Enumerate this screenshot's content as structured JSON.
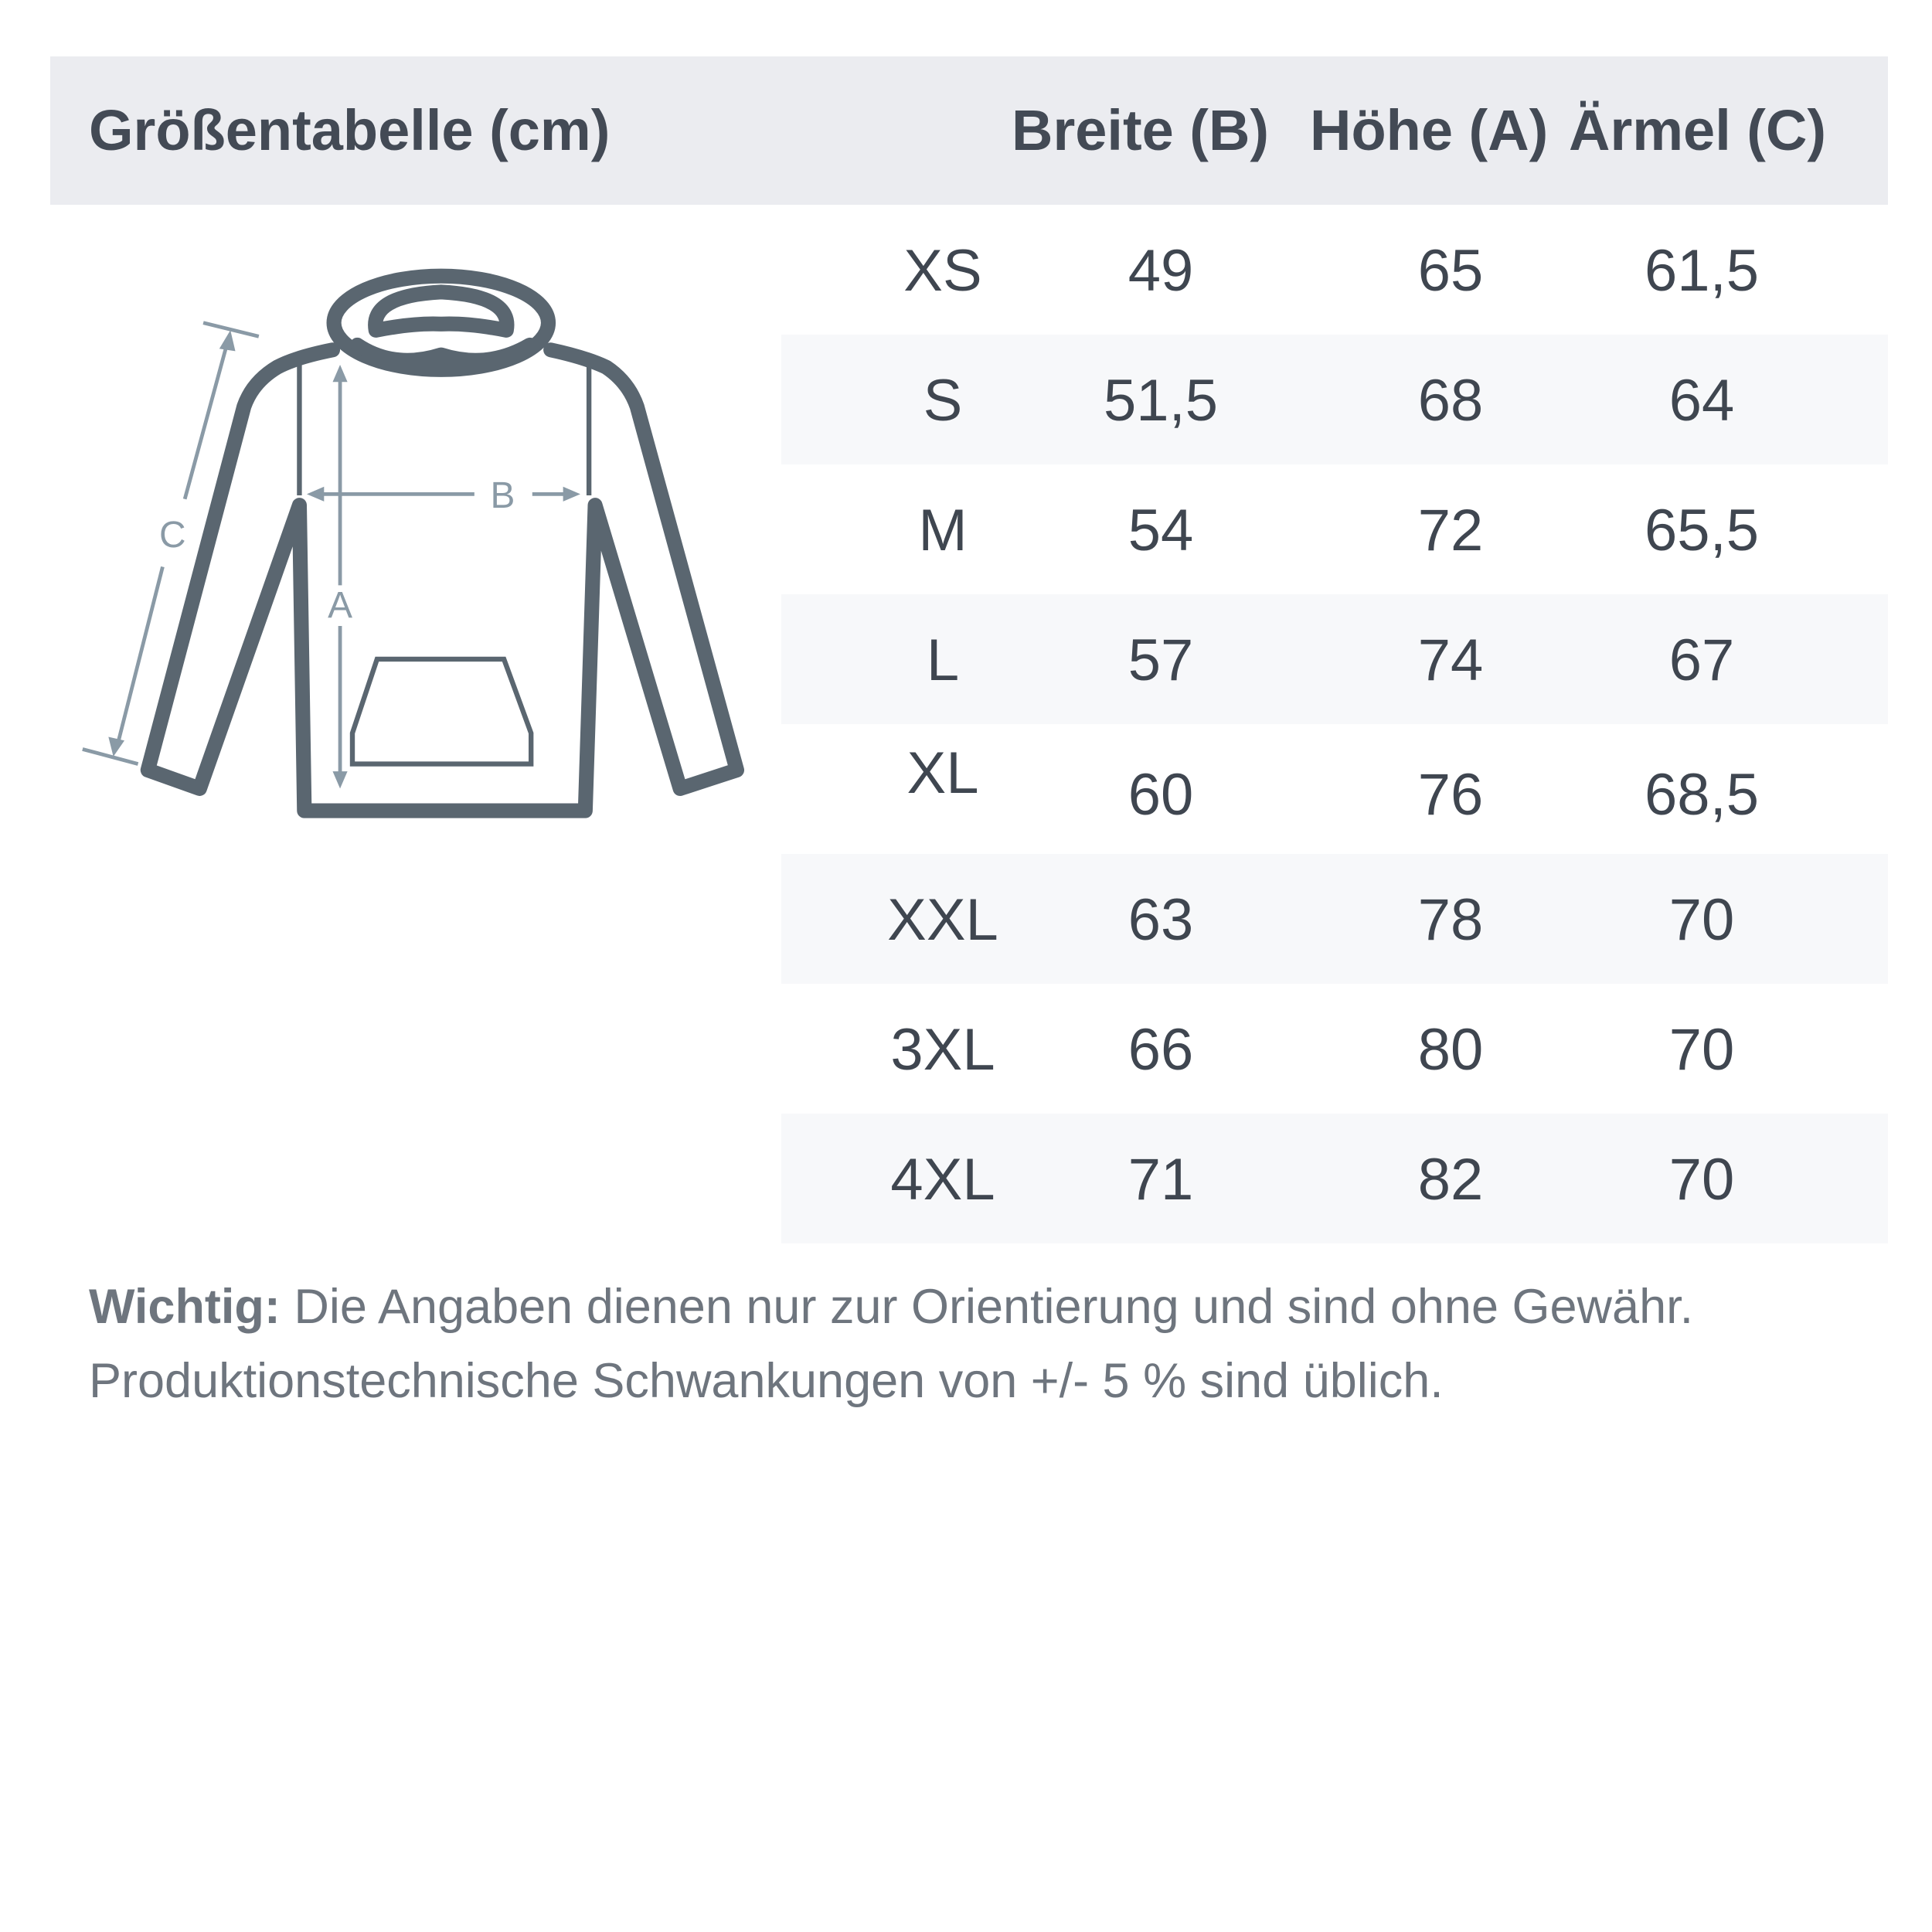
{
  "header": {
    "title": "Größentabelle (cm)",
    "columns": [
      "Breite (B)",
      "Höhe (A)",
      "Ärmel (C)"
    ]
  },
  "diagram": {
    "labels": {
      "a": "A",
      "b": "B",
      "c": "C"
    },
    "garment_color": "#5a6670",
    "arrow_color": "#8a9aa6"
  },
  "rows": [
    {
      "size": "XS",
      "breite": "49",
      "hoehe": "65",
      "aermel": "61,5"
    },
    {
      "size": "S",
      "breite": "51,5",
      "hoehe": "68",
      "aermel": "64"
    },
    {
      "size": "M",
      "breite": "54",
      "hoehe": "72",
      "aermel": "65,5"
    },
    {
      "size": "L",
      "breite": "57",
      "hoehe": "74",
      "aermel": "67"
    },
    {
      "size": "XL",
      "breite": "60",
      "hoehe": "76",
      "aermel": "68,5"
    },
    {
      "size": "XXL",
      "breite": "63",
      "hoehe": "78",
      "aermel": "70"
    },
    {
      "size": "3XL",
      "breite": "66",
      "hoehe": "80",
      "aermel": "70"
    },
    {
      "size": "4XL",
      "breite": "71",
      "hoehe": "82",
      "aermel": "70"
    }
  ],
  "note": {
    "label": "Wichtig:",
    "line1": " Die Angaben dienen nur zur Orientierung und sind ohne Gewähr.",
    "line2": "Produktionstechnische Schwankungen von +/- 5 % sind üblich."
  }
}
